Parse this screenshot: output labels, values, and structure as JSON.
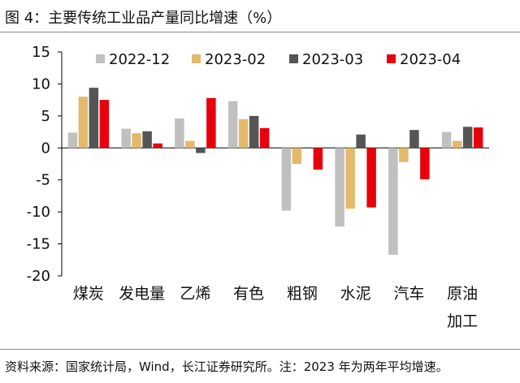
{
  "header": {
    "title": "图 4：主要传统工业品产量同比增速（%）"
  },
  "footer": {
    "source": "资料来源：国家统计局，Wind，长江证券研究所。注：2023 年为两年平均增速。"
  },
  "chart_data": {
    "type": "bar",
    "categories": [
      "煤炭",
      "发电量",
      "乙烯",
      "有色",
      "粗钢",
      "水泥",
      "汽车",
      "原油加工"
    ],
    "category_lines": [
      [
        "煤炭"
      ],
      [
        "发电量"
      ],
      [
        "乙烯"
      ],
      [
        "有色"
      ],
      [
        "粗钢"
      ],
      [
        "水泥"
      ],
      [
        "汽车"
      ],
      [
        "原油",
        "加工"
      ]
    ],
    "series": [
      {
        "name": "2022-12",
        "color": "#c0c0c0",
        "values": [
          2.4,
          3.0,
          4.6,
          7.3,
          -9.8,
          -12.3,
          -16.7,
          2.5
        ]
      },
      {
        "name": "2023-02",
        "color": "#e3b96c",
        "values": [
          8.0,
          2.3,
          1.1,
          4.5,
          -2.5,
          -9.5,
          -2.2,
          1.1
        ]
      },
      {
        "name": "2023-03",
        "color": "#555555",
        "values": [
          9.4,
          2.6,
          -0.8,
          5.0,
          0.0,
          2.1,
          2.8,
          3.3
        ]
      },
      {
        "name": "2023-04",
        "color": "#e8000b",
        "values": [
          7.5,
          0.7,
          7.8,
          3.1,
          -3.4,
          -9.3,
          -4.9,
          3.2
        ]
      }
    ],
    "ylim": [
      -20,
      15
    ],
    "yticks": [
      "15",
      "10",
      "5",
      "0",
      "-5",
      "-10",
      "-15",
      "-20"
    ],
    "ytick_values": [
      15,
      10,
      5,
      0,
      -5,
      -10,
      -15,
      -20
    ],
    "legend_position": "top",
    "grid": false
  }
}
